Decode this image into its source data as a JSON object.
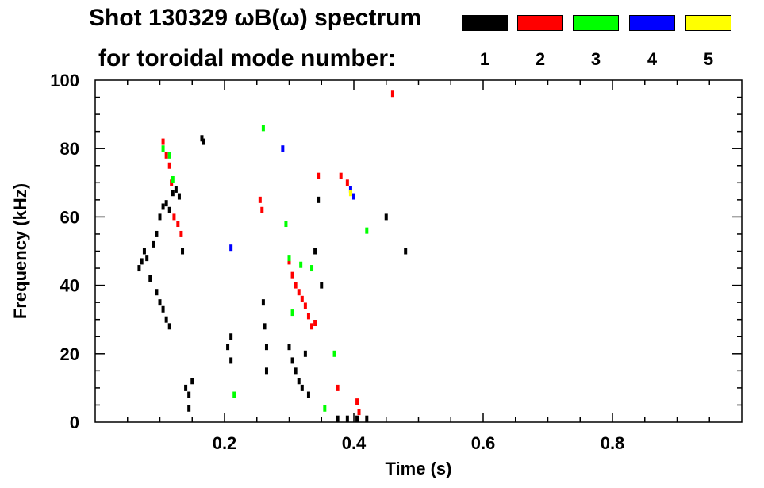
{
  "chart_data": {
    "type": "scatter",
    "title_line1": "Shot 130329 ωB(ω) spectrum",
    "title_line2": "for toroidal mode number:",
    "xlabel": "Time (s)",
    "ylabel": "Frequency (kHz)",
    "xlim": [
      0.0,
      1.0
    ],
    "ylim": [
      0,
      100
    ],
    "x_ticks": [
      0.2,
      0.4,
      0.6,
      0.8
    ],
    "x_tick_labels": [
      "0.2",
      "0.4",
      "0.6",
      "0.8"
    ],
    "y_ticks": [
      0,
      20,
      40,
      60,
      80,
      100
    ],
    "y_tick_labels": [
      "0",
      "20",
      "40",
      "60",
      "80",
      "100"
    ],
    "grid": false,
    "legend_position": "top-right",
    "legend": [
      {
        "label": "1",
        "color": "#000000"
      },
      {
        "label": "2",
        "color": "#ff0000"
      },
      {
        "label": "3",
        "color": "#00ff00"
      },
      {
        "label": "4",
        "color": "#0000ff"
      },
      {
        "label": "5",
        "color": "#ffff00"
      }
    ],
    "series": [
      {
        "mode": "1",
        "color": "#000000",
        "points": [
          [
            0.068,
            45
          ],
          [
            0.072,
            47
          ],
          [
            0.076,
            50
          ],
          [
            0.08,
            48
          ],
          [
            0.085,
            42
          ],
          [
            0.09,
            52
          ],
          [
            0.095,
            55
          ],
          [
            0.1,
            60
          ],
          [
            0.105,
            63
          ],
          [
            0.11,
            64
          ],
          [
            0.115,
            62
          ],
          [
            0.12,
            67
          ],
          [
            0.125,
            68
          ],
          [
            0.13,
            66
          ],
          [
            0.135,
            50
          ],
          [
            0.095,
            38
          ],
          [
            0.1,
            35
          ],
          [
            0.105,
            33
          ],
          [
            0.11,
            30
          ],
          [
            0.115,
            28
          ],
          [
            0.14,
            10
          ],
          [
            0.145,
            8
          ],
          [
            0.15,
            12
          ],
          [
            0.145,
            4
          ],
          [
            0.165,
            83
          ],
          [
            0.167,
            82
          ],
          [
            0.205,
            22
          ],
          [
            0.21,
            25
          ],
          [
            0.21,
            18
          ],
          [
            0.26,
            35
          ],
          [
            0.262,
            28
          ],
          [
            0.265,
            22
          ],
          [
            0.265,
            15
          ],
          [
            0.3,
            22
          ],
          [
            0.305,
            18
          ],
          [
            0.31,
            15
          ],
          [
            0.315,
            12
          ],
          [
            0.32,
            10
          ],
          [
            0.325,
            20
          ],
          [
            0.33,
            8
          ],
          [
            0.34,
            50
          ],
          [
            0.345,
            65
          ],
          [
            0.35,
            40
          ],
          [
            0.375,
            1
          ],
          [
            0.39,
            1
          ],
          [
            0.405,
            1
          ],
          [
            0.42,
            1
          ],
          [
            0.45,
            60
          ],
          [
            0.48,
            50
          ]
        ]
      },
      {
        "mode": "2",
        "color": "#ff0000",
        "points": [
          [
            0.105,
            82
          ],
          [
            0.11,
            78
          ],
          [
            0.115,
            75
          ],
          [
            0.118,
            70
          ],
          [
            0.122,
            60
          ],
          [
            0.128,
            58
          ],
          [
            0.133,
            55
          ],
          [
            0.255,
            65
          ],
          [
            0.258,
            62
          ],
          [
            0.3,
            47
          ],
          [
            0.305,
            43
          ],
          [
            0.31,
            40
          ],
          [
            0.315,
            38
          ],
          [
            0.32,
            36
          ],
          [
            0.325,
            34
          ],
          [
            0.33,
            31
          ],
          [
            0.335,
            28
          ],
          [
            0.34,
            29
          ],
          [
            0.345,
            72
          ],
          [
            0.38,
            72
          ],
          [
            0.39,
            70
          ],
          [
            0.405,
            6
          ],
          [
            0.408,
            3
          ],
          [
            0.375,
            10
          ],
          [
            0.46,
            96
          ]
        ]
      },
      {
        "mode": "3",
        "color": "#00ff00",
        "points": [
          [
            0.105,
            80
          ],
          [
            0.115,
            78
          ],
          [
            0.12,
            71
          ],
          [
            0.215,
            8
          ],
          [
            0.26,
            86
          ],
          [
            0.295,
            58
          ],
          [
            0.3,
            48
          ],
          [
            0.305,
            32
          ],
          [
            0.318,
            46
          ],
          [
            0.335,
            45
          ],
          [
            0.355,
            4
          ],
          [
            0.37,
            20
          ],
          [
            0.42,
            56
          ]
        ]
      },
      {
        "mode": "4",
        "color": "#0000ff",
        "points": [
          [
            0.21,
            51
          ],
          [
            0.29,
            80
          ],
          [
            0.395,
            68
          ],
          [
            0.4,
            66
          ]
        ]
      },
      {
        "mode": "5",
        "color": "#ffff00",
        "points": [
          [
            0.395,
            67
          ]
        ]
      }
    ]
  }
}
